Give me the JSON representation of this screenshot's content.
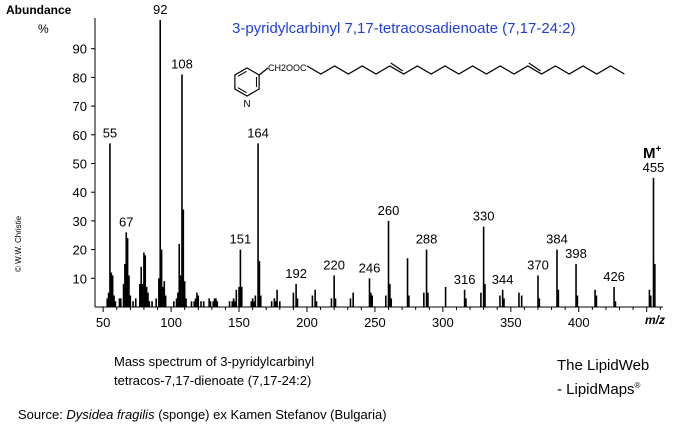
{
  "chart_data": {
    "type": "bar",
    "title": "3-pyridylcarbinyl 7,17-tetracosadienoate (7,17-24:2)",
    "ylabel": "Abundance",
    "yunit": "%",
    "xlabel": "m/z",
    "xlim": [
      44,
      462
    ],
    "ylim": [
      0,
      100
    ],
    "xticks": [
      50,
      100,
      150,
      200,
      250,
      300,
      350,
      400
    ],
    "yticks": [
      10,
      20,
      30,
      40,
      50,
      60,
      70,
      80,
      90
    ],
    "molecular_ion_label": "M",
    "molecular_ion_sup": "+",
    "structure_label": "CH2OOC",
    "peaks": [
      [
        53,
        3
      ],
      [
        54,
        5
      ],
      [
        55,
        57
      ],
      [
        56,
        12
      ],
      [
        57,
        11
      ],
      [
        58,
        4
      ],
      [
        59,
        2
      ],
      [
        62,
        3
      ],
      [
        63,
        3
      ],
      [
        65,
        8
      ],
      [
        66,
        15
      ],
      [
        67,
        26
      ],
      [
        68,
        24
      ],
      [
        69,
        11
      ],
      [
        70,
        4
      ],
      [
        72,
        2
      ],
      [
        74,
        3
      ],
      [
        77,
        8
      ],
      [
        78,
        14
      ],
      [
        79,
        8
      ],
      [
        80,
        19
      ],
      [
        81,
        18
      ],
      [
        82,
        7
      ],
      [
        83,
        5
      ],
      [
        84,
        2
      ],
      [
        86,
        2
      ],
      [
        89,
        3
      ],
      [
        91,
        10
      ],
      [
        92,
        100
      ],
      [
        93,
        20
      ],
      [
        94,
        7
      ],
      [
        95,
        9
      ],
      [
        96,
        4
      ],
      [
        102,
        2
      ],
      [
        104,
        3
      ],
      [
        105,
        5
      ],
      [
        106,
        22
      ],
      [
        107,
        11
      ],
      [
        108,
        81
      ],
      [
        109,
        34
      ],
      [
        110,
        9
      ],
      [
        111,
        3
      ],
      [
        115,
        2
      ],
      [
        117,
        2
      ],
      [
        118,
        3
      ],
      [
        119,
        5
      ],
      [
        120,
        4
      ],
      [
        122,
        2
      ],
      [
        124,
        2
      ],
      [
        128,
        3
      ],
      [
        129,
        2
      ],
      [
        131,
        2
      ],
      [
        132,
        3
      ],
      [
        133,
        3
      ],
      [
        134,
        2
      ],
      [
        143,
        2
      ],
      [
        145,
        2
      ],
      [
        146,
        3
      ],
      [
        147,
        2
      ],
      [
        148,
        6
      ],
      [
        150,
        7
      ],
      [
        151,
        20
      ],
      [
        152,
        7
      ],
      [
        159,
        2
      ],
      [
        160,
        3
      ],
      [
        161,
        2
      ],
      [
        162,
        4
      ],
      [
        164,
        57
      ],
      [
        165,
        16
      ],
      [
        166,
        4
      ],
      [
        174,
        2
      ],
      [
        176,
        3
      ],
      [
        177,
        2
      ],
      [
        178,
        6
      ],
      [
        180,
        2
      ],
      [
        190,
        5
      ],
      [
        192,
        8
      ],
      [
        193,
        3
      ],
      [
        204,
        4
      ],
      [
        206,
        6
      ],
      [
        207,
        2
      ],
      [
        218,
        3
      ],
      [
        220,
        11
      ],
      [
        221,
        3
      ],
      [
        232,
        3
      ],
      [
        234,
        5
      ],
      [
        246,
        10
      ],
      [
        247,
        5
      ],
      [
        248,
        4
      ],
      [
        258,
        4
      ],
      [
        260,
        30
      ],
      [
        261,
        8
      ],
      [
        262,
        3
      ],
      [
        274,
        17
      ],
      [
        275,
        4
      ],
      [
        286,
        5
      ],
      [
        288,
        20
      ],
      [
        289,
        5
      ],
      [
        302,
        7
      ],
      [
        316,
        6
      ],
      [
        317,
        3
      ],
      [
        328,
        5
      ],
      [
        330,
        28
      ],
      [
        331,
        8
      ],
      [
        342,
        4
      ],
      [
        344,
        6
      ],
      [
        345,
        3
      ],
      [
        356,
        5
      ],
      [
        358,
        4
      ],
      [
        370,
        11
      ],
      [
        371,
        3
      ],
      [
        384,
        20
      ],
      [
        385,
        6
      ],
      [
        398,
        15
      ],
      [
        399,
        4
      ],
      [
        412,
        6
      ],
      [
        413,
        4
      ],
      [
        426,
        7
      ],
      [
        427,
        2
      ],
      [
        452,
        6
      ],
      [
        453,
        4
      ],
      [
        455,
        45
      ],
      [
        456,
        15
      ]
    ],
    "annotations": [
      {
        "x": 55,
        "y": 57,
        "label": "55"
      },
      {
        "x": 67,
        "y": 26,
        "label": "67"
      },
      {
        "x": 92,
        "y": 100,
        "label": "92"
      },
      {
        "x": 108,
        "y": 81,
        "label": "108"
      },
      {
        "x": 151,
        "y": 20,
        "label": "151"
      },
      {
        "x": 164,
        "y": 57,
        "label": "164"
      },
      {
        "x": 192,
        "y": 8,
        "label": "192"
      },
      {
        "x": 220,
        "y": 11,
        "label": "220"
      },
      {
        "x": 246,
        "y": 10,
        "label": "246"
      },
      {
        "x": 260,
        "y": 30,
        "label": "260"
      },
      {
        "x": 288,
        "y": 20,
        "label": "288"
      },
      {
        "x": 316,
        "y": 6,
        "label": "316"
      },
      {
        "x": 330,
        "y": 28,
        "label": "330"
      },
      {
        "x": 344,
        "y": 6,
        "label": "344"
      },
      {
        "x": 370,
        "y": 11,
        "label": "370"
      },
      {
        "x": 384,
        "y": 20,
        "label": "384"
      },
      {
        "x": 398,
        "y": 15,
        "label": "398"
      },
      {
        "x": 426,
        "y": 7,
        "label": "426"
      },
      {
        "x": 455,
        "y": 45,
        "label": "455"
      }
    ],
    "bar_color": "#000000",
    "title_color": "#1f3fd6"
  },
  "caption": [
    "Mass spectrum of 3-pyridylcarbinyl",
    "tetracos-7,17-dienoate (7,17-24:2)"
  ],
  "credit": [
    "The LipidWeb",
    "- LipidMaps"
  ],
  "credit_mark": "®",
  "source": {
    "prefix": "Source:  ",
    "organism": "Dysidea fragilis",
    "suffix": " (sponge) ex Kamen Stefanov (Bulgaria)"
  },
  "copyright": "© W.W. Christie"
}
